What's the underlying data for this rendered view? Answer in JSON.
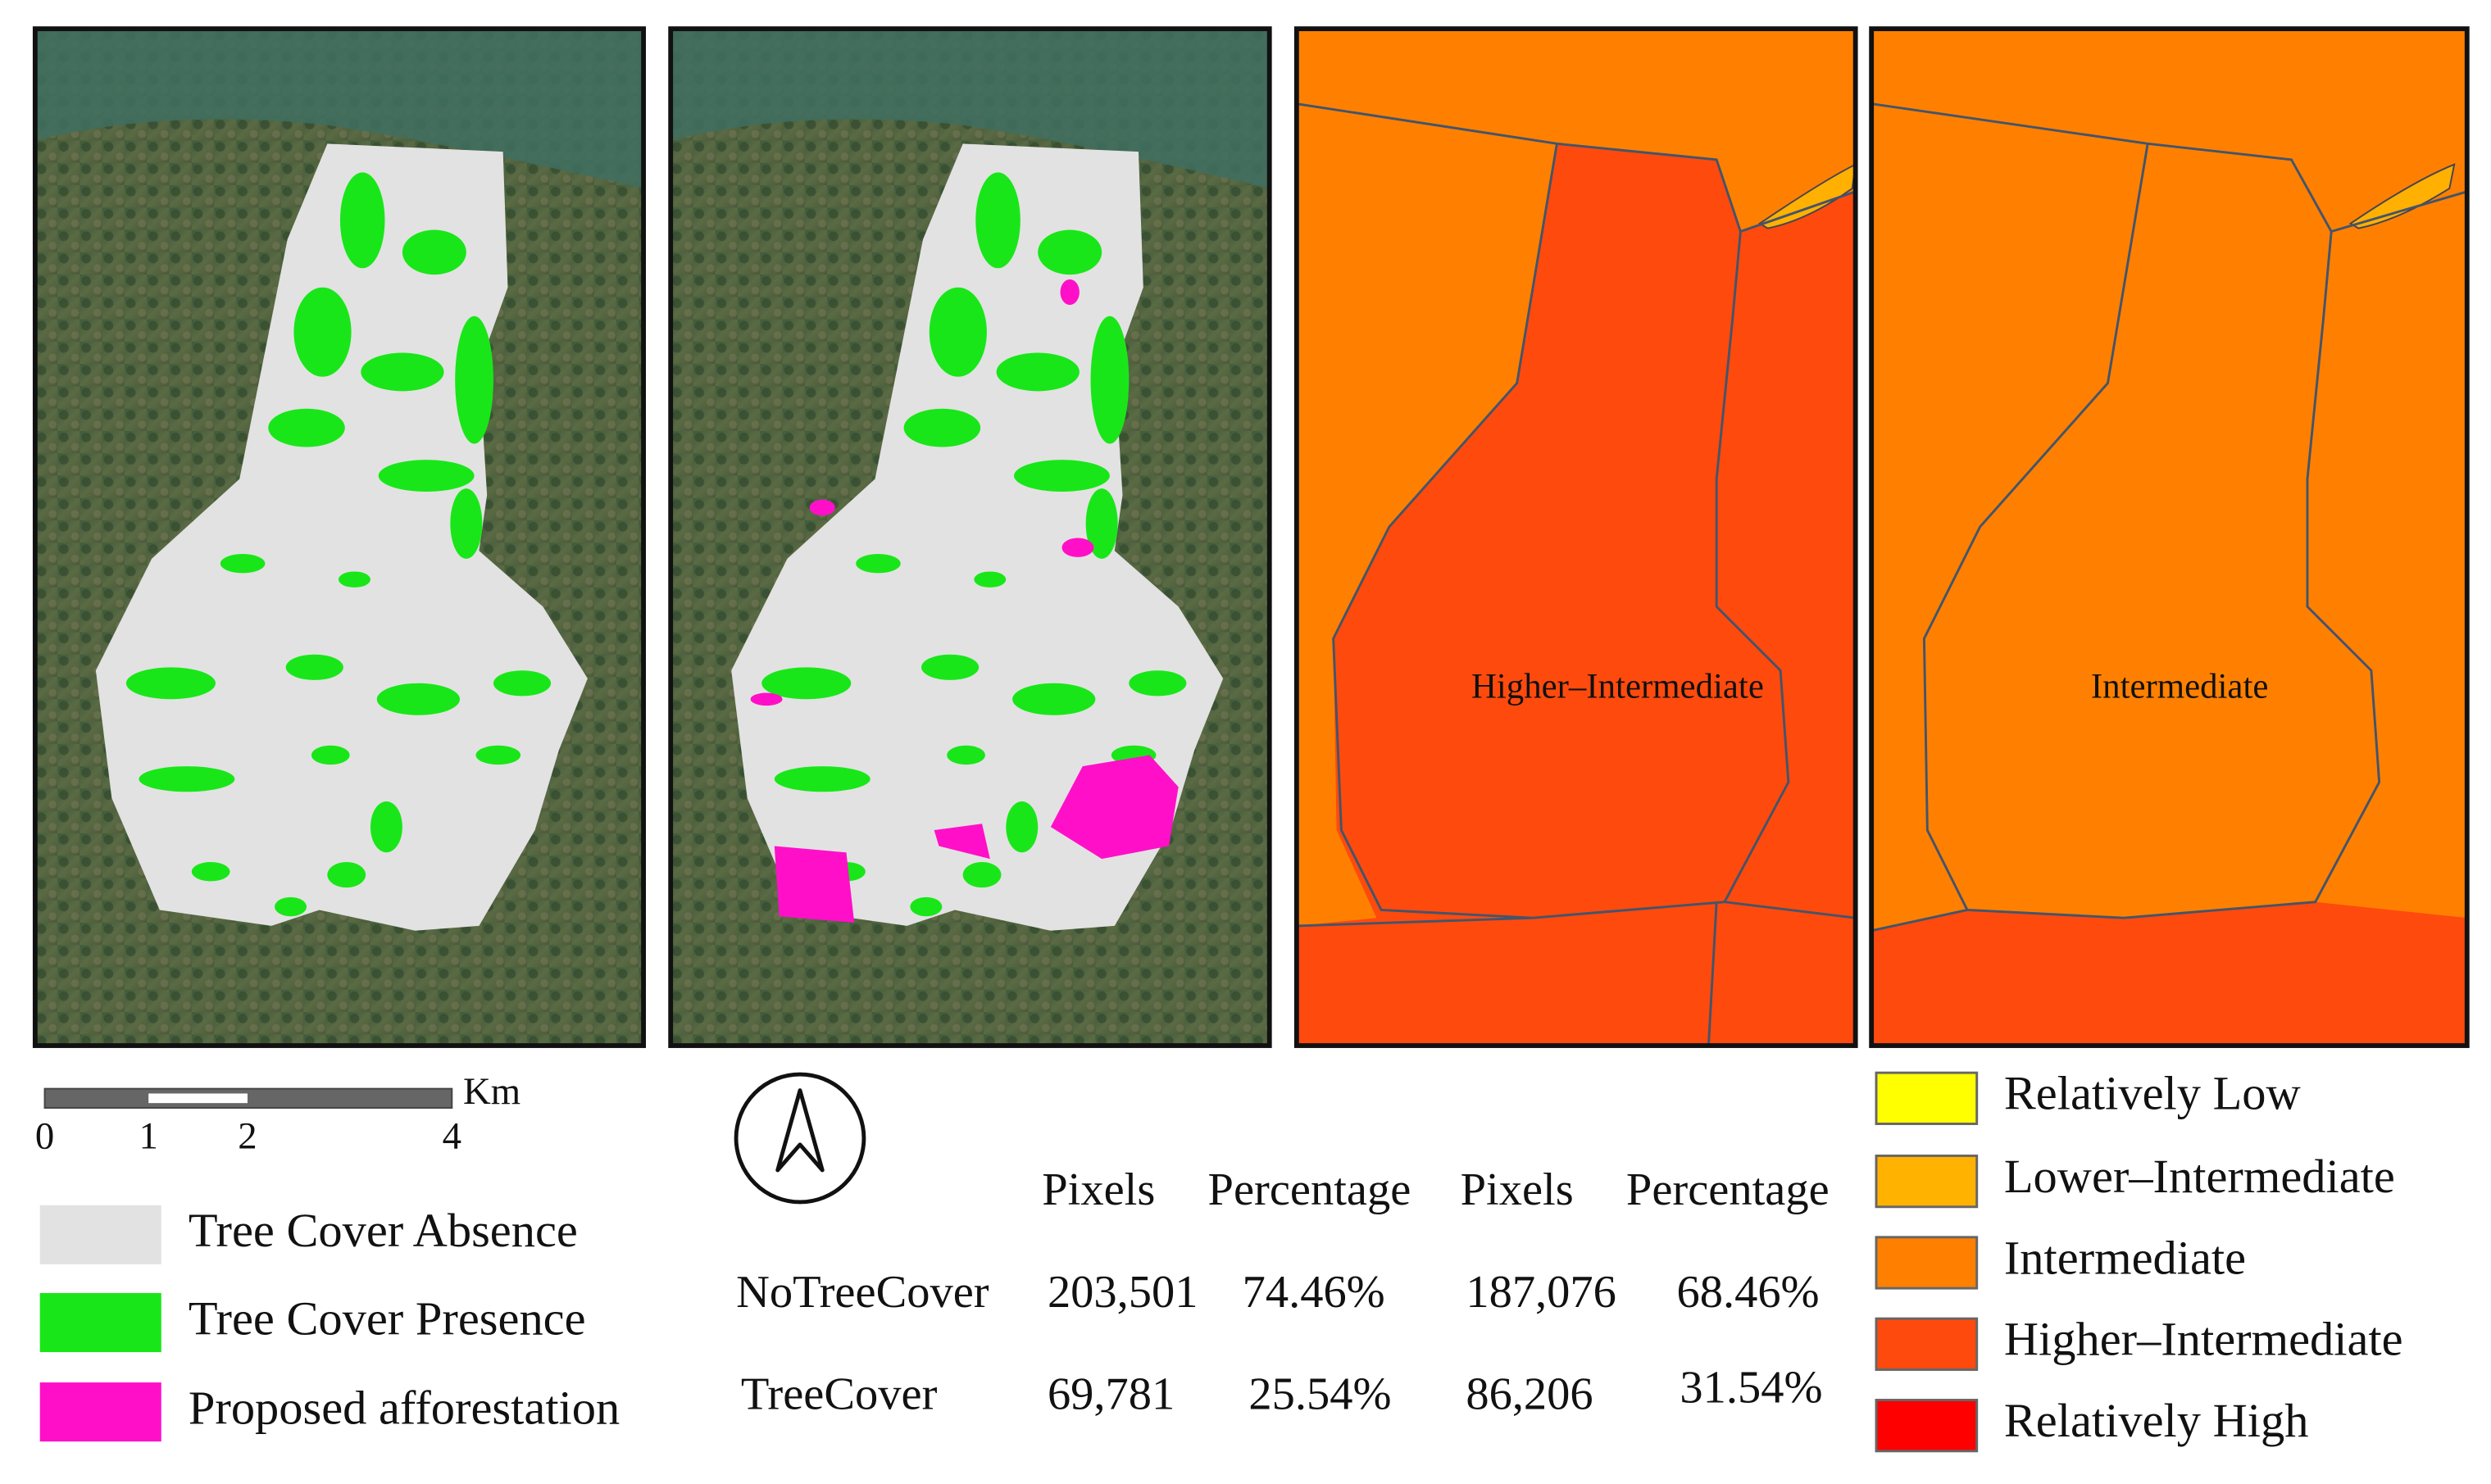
{
  "maps": {
    "panel3_label": "Higher–Intermediate",
    "panel4_label": "Intermediate"
  },
  "scale_bar": {
    "unit": "Km",
    "ticks": [
      "0",
      "1",
      "2",
      "4"
    ]
  },
  "cover_legend": [
    "Tree Cover Absence",
    "Tree Cover Presence",
    "Proposed afforestation"
  ],
  "table": {
    "header": [
      "Pixels",
      "Percentage",
      "Pixels",
      "Percentage"
    ],
    "rows": [
      [
        "NoTreeCover",
        "203,501",
        "74.46%",
        "187,076",
        "68.46%"
      ],
      [
        "TreeCover",
        "69,781",
        "25.54%",
        "86,206",
        "31.54%"
      ]
    ]
  },
  "class_legend": [
    "Relatively Low",
    "Lower–Intermediate",
    "Intermediate",
    "Higher–Intermediate",
    "Relatively High"
  ]
}
